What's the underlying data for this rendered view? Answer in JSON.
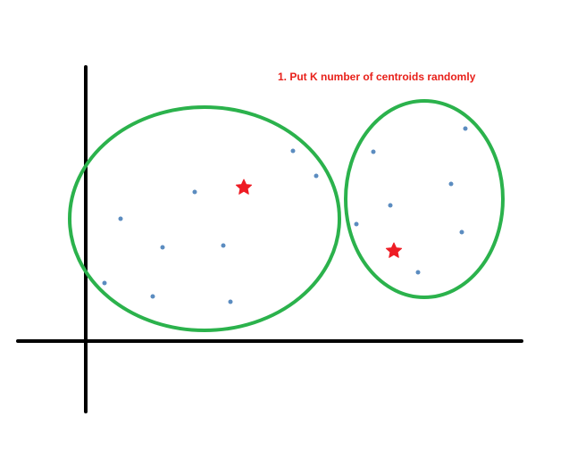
{
  "caption": "1. Put K number of centroids randomly",
  "colors": {
    "caption": "#e8201a",
    "axis": "#000000",
    "cluster_outline": "#2bb24c",
    "data_point": "#5b8cc0",
    "centroid": "#ee1c24"
  },
  "icons": {
    "centroid": "star"
  }
}
